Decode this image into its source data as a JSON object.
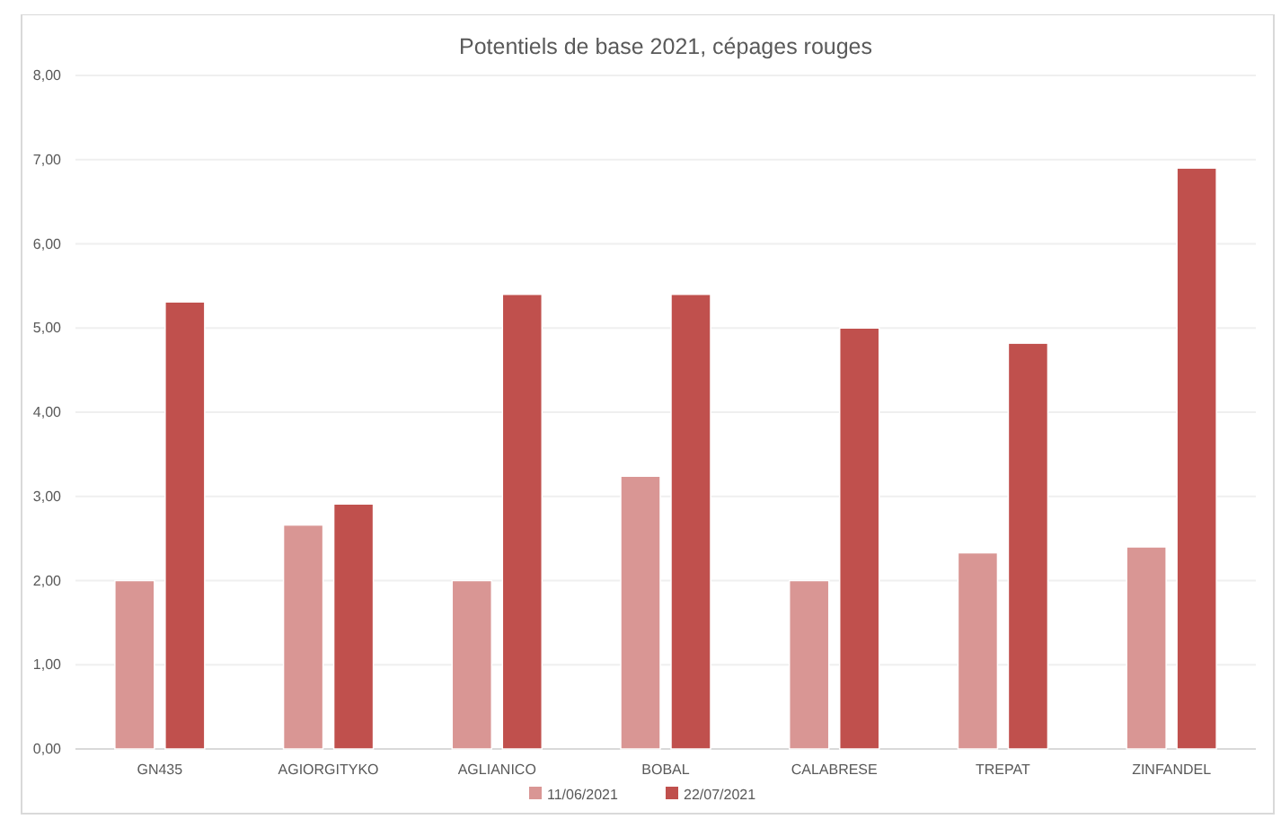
{
  "chart_data": {
    "type": "bar",
    "title": "Potentiels de base 2021, cépages rouges",
    "categories": [
      "GN435",
      "AGIORGITYKO",
      "AGLIANICO",
      "BOBAL",
      "CALABRESE",
      "TREPAT",
      "ZINFANDEL"
    ],
    "series": [
      {
        "name": "11/06/2021",
        "color": "#d99694",
        "values": [
          2.0,
          2.66,
          2.0,
          3.24,
          2.0,
          2.33,
          2.4
        ]
      },
      {
        "name": "22/07/2021",
        "color": "#c0504d",
        "values": [
          5.31,
          2.91,
          5.4,
          5.4,
          5.0,
          4.82,
          6.9
        ]
      }
    ],
    "ylim": [
      0,
      8
    ],
    "yticks": [
      {
        "value": 0,
        "label": "0,00"
      },
      {
        "value": 1,
        "label": "1,00"
      },
      {
        "value": 2,
        "label": "2,00"
      },
      {
        "value": 3,
        "label": "3,00"
      },
      {
        "value": 4,
        "label": "4,00"
      },
      {
        "value": 5,
        "label": "5,00"
      },
      {
        "value": 6,
        "label": "6,00"
      },
      {
        "value": 7,
        "label": "7,00"
      },
      {
        "value": 8,
        "label": "8,00"
      }
    ],
    "grid": "y",
    "legend": "bottom"
  }
}
